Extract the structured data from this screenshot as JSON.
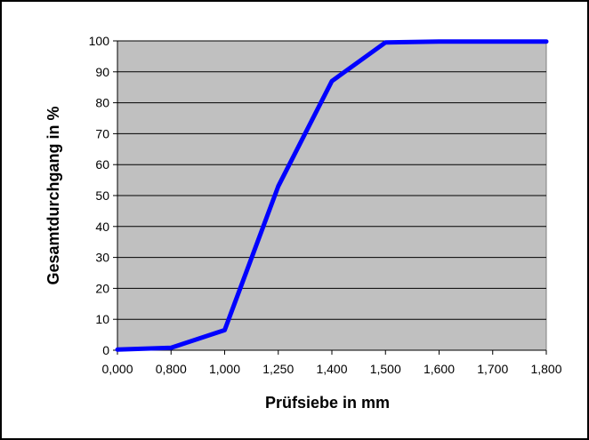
{
  "chart_data": {
    "type": "line",
    "title": "",
    "xlabel": "Prüfsiebe in mm",
    "ylabel": "Gesamtdurchgang in %",
    "categories": [
      "0,000",
      "0,800",
      "1,000",
      "1,250",
      "1,400",
      "1,500",
      "1,600",
      "1,700",
      "1,800"
    ],
    "series": [
      {
        "values": [
          0.2,
          0.8,
          6.5,
          53,
          87,
          99.5,
          99.8,
          99.8,
          99.8
        ],
        "color": "#0000ff"
      }
    ],
    "ylim": [
      0,
      100
    ],
    "yticks": [
      0,
      10,
      20,
      30,
      40,
      50,
      60,
      70,
      80,
      90,
      100
    ],
    "grid": true,
    "plot_background": "#c0c0c0"
  }
}
